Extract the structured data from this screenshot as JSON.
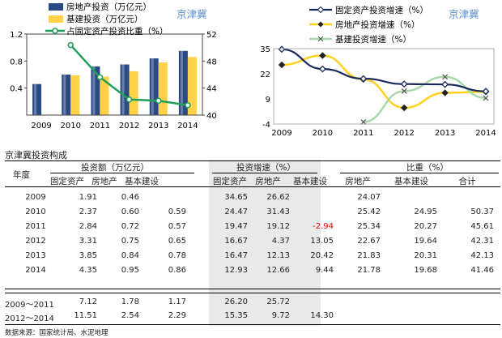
{
  "chart_data": [
    {
      "type": "bar",
      "categories": [
        "2009",
        "2010",
        "2011",
        "2012",
        "2013",
        "2014"
      ],
      "series": [
        {
          "name": "房地产投资（万亿元）",
          "axis": "left",
          "color": "#2a4a86",
          "values": [
            0.46,
            0.6,
            0.72,
            0.75,
            0.84,
            0.95
          ]
        },
        {
          "name": "基建投资（万亿元）",
          "axis": "left",
          "color": "#ffd24a",
          "values": [
            null,
            0.59,
            0.57,
            0.65,
            0.78,
            0.86
          ]
        },
        {
          "name": "占固定资产投资比重（%）",
          "axis": "right",
          "type": "line",
          "color": "#1f9e5a",
          "values": [
            null,
            50.37,
            45.61,
            42.31,
            42.13,
            41.46
          ]
        }
      ],
      "yticks_left": [
        "0.4",
        "0.8",
        "1.2"
      ],
      "yticks_right": [
        "40",
        "44",
        "48",
        "52"
      ],
      "ylim_left": [
        0,
        1.2
      ],
      "ylim_right": [
        40,
        52
      ],
      "annotation": "京津冀"
    },
    {
      "type": "line",
      "categories": [
        "2009",
        "2010",
        "2011",
        "2012",
        "2013",
        "2014"
      ],
      "series": [
        {
          "name": "固定资产投资增速（%）",
          "color": "#1a2a5c",
          "values": [
            34.65,
            24.47,
            19.47,
            16.67,
            16.47,
            12.93
          ]
        },
        {
          "name": "房地产投资增速（%）",
          "color": "#ffd21e",
          "values": [
            26.62,
            31.43,
            19.12,
            4.37,
            12.13,
            12.66
          ]
        },
        {
          "name": "基建投资增速（%）",
          "color": "#a8d8a8",
          "values": [
            null,
            null,
            -2.94,
            13.05,
            20.42,
            9.44
          ]
        }
      ],
      "yticks": [
        "-4",
        "9",
        "22",
        "35"
      ],
      "ylim": [
        -4,
        35
      ],
      "annotation": "京津冀"
    }
  ],
  "table": {
    "title": "京津冀投资构成",
    "year_header": "年度",
    "groups": [
      "投资额（万亿元）",
      "投资增速（%）",
      "比重（%）"
    ],
    "sub_headers": [
      "固定资产",
      "房地产",
      "基本建设",
      "固定资产",
      "房地产",
      "基本建设",
      "房地产",
      "基本建设",
      "合计"
    ],
    "rows": [
      [
        "2009",
        "1.91",
        "0.46",
        "",
        "34.65",
        "26.62",
        "",
        "24.07",
        "",
        ""
      ],
      [
        "2010",
        "2.37",
        "0.60",
        "0.59",
        "24.47",
        "31.43",
        "",
        "25.42",
        "24.95",
        "50.37"
      ],
      [
        "2011",
        "2.84",
        "0.72",
        "0.57",
        "19.47",
        "19.12",
        "-2.94",
        "25.34",
        "20.27",
        "45.61"
      ],
      [
        "2012",
        "3.31",
        "0.75",
        "0.65",
        "16.67",
        "4.37",
        "13.05",
        "22.67",
        "19.64",
        "42.31"
      ],
      [
        "2013",
        "3.85",
        "0.84",
        "0.78",
        "16.47",
        "12.13",
        "20.42",
        "21.83",
        "20.31",
        "42.13"
      ],
      [
        "2014",
        "4.35",
        "0.95",
        "0.86",
        "12.93",
        "12.66",
        "9.44",
        "21.78",
        "19.68",
        "41.46"
      ],
      [
        "2009～2011",
        "7.12",
        "1.78",
        "1.17",
        "26.20",
        "25.72",
        "",
        "",
        "",
        ""
      ],
      [
        "2012～2014",
        "11.51",
        "2.54",
        "2.29",
        "15.35",
        "9.72",
        "14.30",
        "",
        "",
        ""
      ]
    ]
  },
  "source": "数据来源：国家统计局、水泥地理"
}
